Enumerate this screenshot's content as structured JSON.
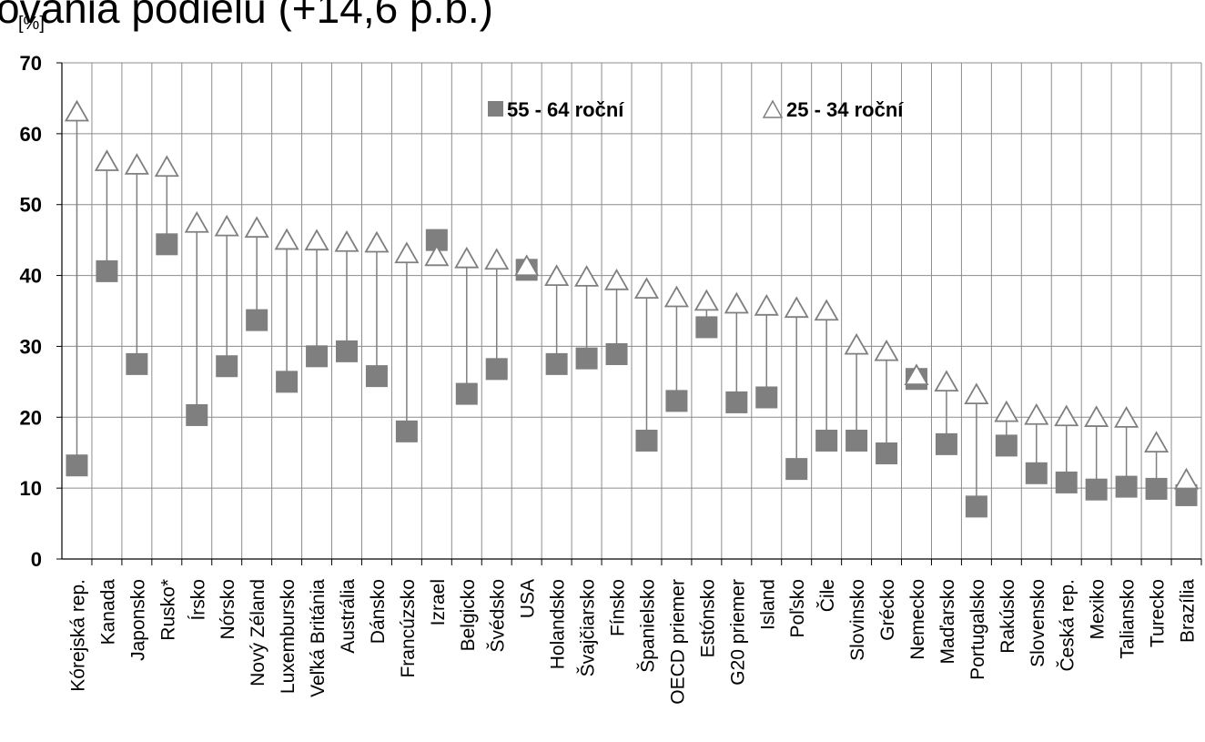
{
  "page": {
    "title": "ovania podielu (+14,6 p.b.)"
  },
  "chart_data": {
    "type": "scatter",
    "ylabel": "[%]",
    "ylim": [
      0,
      70
    ],
    "yticks": [
      0,
      10,
      20,
      30,
      40,
      50,
      60,
      70
    ],
    "grid": true,
    "legend_position": "top-center",
    "categories": [
      "Kórejská rep.",
      "Kanada",
      "Japonsko",
      "Rusko*",
      "Írsko",
      "Nórsko",
      "Nový Zéland",
      "Luxembursko",
      "Veľká Británia",
      "Austrália",
      "Dánsko",
      "Francúzsko",
      "Izrael",
      "Belgicko",
      "Švédsko",
      "USA",
      "Holandsko",
      "Švajčiarsko",
      "Fínsko",
      "Španielsko",
      "OECD priemer",
      "Estónsko",
      "G20 priemer",
      "Island",
      "Poľsko",
      "Čile",
      "Slovinsko",
      "Grécko",
      "Nemecko",
      "Maďarsko",
      "Portugalsko",
      "Rakúsko",
      "Slovensko",
      "Česká rep.",
      "Mexiko",
      "Taliansko",
      "Turecko",
      "Brazília"
    ],
    "series": [
      {
        "name": "55 - 64 roční",
        "marker": "square",
        "color": "#7f7f7f",
        "values": [
          13.2,
          40.6,
          27.5,
          44.4,
          20.3,
          27.2,
          33.7,
          25.0,
          28.6,
          29.3,
          25.8,
          18.0,
          45.0,
          23.3,
          26.8,
          40.8,
          27.5,
          28.3,
          28.9,
          16.7,
          22.3,
          32.7,
          22.1,
          22.8,
          12.7,
          16.7,
          16.7,
          14.9,
          25.4,
          16.2,
          7.4,
          16.0,
          12.1,
          10.8,
          9.8,
          10.2,
          9.9,
          9.0
        ]
      },
      {
        "name": "25 - 34 roční",
        "marker": "triangle",
        "color": "#ffffff",
        "stroke": "#7f7f7f",
        "values": [
          63.0,
          56.0,
          55.5,
          55.2,
          47.3,
          46.8,
          46.6,
          44.9,
          44.8,
          44.6,
          44.5,
          43.0,
          42.6,
          42.3,
          42.1,
          41.2,
          39.8,
          39.7,
          39.2,
          38.0,
          36.8,
          36.3,
          35.9,
          35.6,
          35.3,
          34.9,
          30.1,
          29.2,
          25.8,
          24.9,
          23.1,
          20.6,
          20.2,
          20.0,
          19.9,
          19.8,
          16.3,
          11.1
        ]
      }
    ]
  }
}
